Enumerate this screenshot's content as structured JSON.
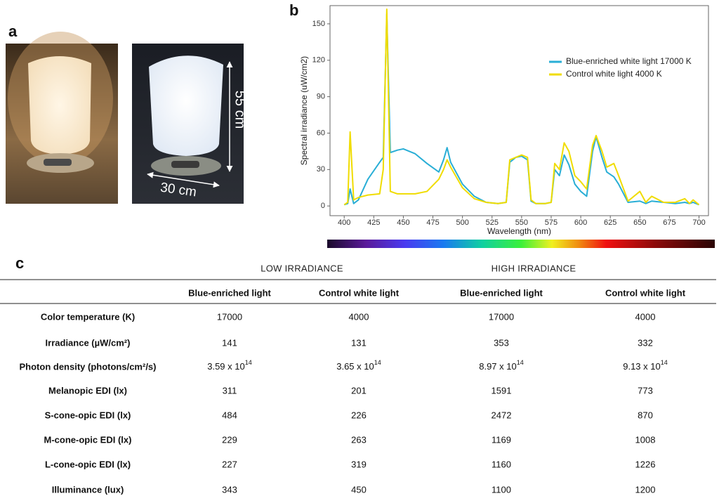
{
  "panel_labels": [
    "a",
    "b",
    "c"
  ],
  "photo": {
    "height_label": "55 cm",
    "width_label": "30 cm"
  },
  "chart_data": {
    "type": "line",
    "x_label": "Wavelength (nm)",
    "y_label": "Spectral irradiance (uW/cm2)",
    "x": [
      400,
      403,
      405,
      408,
      412,
      420,
      430,
      433,
      436,
      439,
      445,
      450,
      460,
      470,
      480,
      484,
      487,
      490,
      500,
      510,
      520,
      530,
      537,
      540,
      545,
      550,
      555,
      558,
      562,
      570,
      575,
      578,
      582,
      586,
      590,
      595,
      600,
      605,
      610,
      613,
      618,
      622,
      628,
      632,
      640,
      650,
      655,
      660,
      670,
      680,
      688,
      692,
      695,
      700
    ],
    "series": [
      {
        "name": "Blue-enriched white light 17000 K",
        "color": "#29aed6",
        "values": [
          1,
          2,
          14,
          2,
          5,
          22,
          36,
          40,
          158,
          44,
          46,
          47,
          43,
          35,
          28,
          38,
          48,
          36,
          18,
          8,
          3,
          2,
          3,
          36,
          40,
          41,
          38,
          4,
          2,
          2,
          3,
          30,
          25,
          42,
          34,
          18,
          12,
          8,
          45,
          57,
          40,
          28,
          24,
          18,
          3,
          4,
          2,
          4,
          3,
          2,
          3,
          2,
          3,
          1
        ]
      },
      {
        "name": "Control white light 4000 K",
        "color": "#f0dc00",
        "values": [
          1,
          3,
          61,
          5,
          7,
          9,
          10,
          30,
          162,
          12,
          10,
          10,
          10,
          12,
          22,
          30,
          38,
          32,
          15,
          6,
          3,
          2,
          3,
          38,
          40,
          42,
          40,
          5,
          2,
          2,
          3,
          35,
          30,
          52,
          45,
          25,
          20,
          14,
          50,
          58,
          45,
          32,
          35,
          25,
          4,
          12,
          3,
          8,
          3,
          3,
          6,
          2,
          5,
          1
        ]
      }
    ],
    "xlim": [
      388,
      708
    ],
    "ylim": [
      -8,
      165
    ],
    "xticks": [
      400,
      425,
      450,
      475,
      500,
      525,
      550,
      575,
      600,
      625,
      650,
      675,
      700
    ],
    "yticks": [
      0,
      30,
      60,
      90,
      120,
      150
    ],
    "legend": "upper right"
  },
  "table": {
    "group_headers": [
      "LOW IRRADIANCE",
      "HIGH IRRADIANCE"
    ],
    "column_headers": [
      "Blue-enriched light",
      "Control white light",
      "Blue-enriched light",
      "Control white light"
    ],
    "rows": [
      [
        "Color temperature (K)",
        "17000",
        "4000",
        "17000",
        "4000"
      ],
      [
        "Irradiance (µW/cm²)",
        "141",
        "131",
        "353",
        "332"
      ],
      [
        "Photon density (photons/cm²/s)",
        {
          "text": "3.59 x 10",
          "sup": "14"
        },
        {
          "text": "3.65 x 10",
          "sup": "14"
        },
        {
          "text": "8.97 x 10",
          "sup": "14"
        },
        {
          "text": "9.13 x 10",
          "sup": "14"
        }
      ],
      [
        "Melanopic EDI (lx)",
        "311",
        "201",
        "1591",
        "773"
      ],
      [
        "S-cone-opic EDI (lx)",
        "484",
        "226",
        "2472",
        "870"
      ],
      [
        "M-cone-opic EDI (lx)",
        "229",
        "263",
        "1169",
        "1008"
      ],
      [
        "L-cone-opic EDI (lx)",
        "227",
        "319",
        "1160",
        "1226"
      ],
      [
        "Illuminance (lux)",
        "343",
        "450",
        "1100",
        "1200"
      ]
    ]
  }
}
